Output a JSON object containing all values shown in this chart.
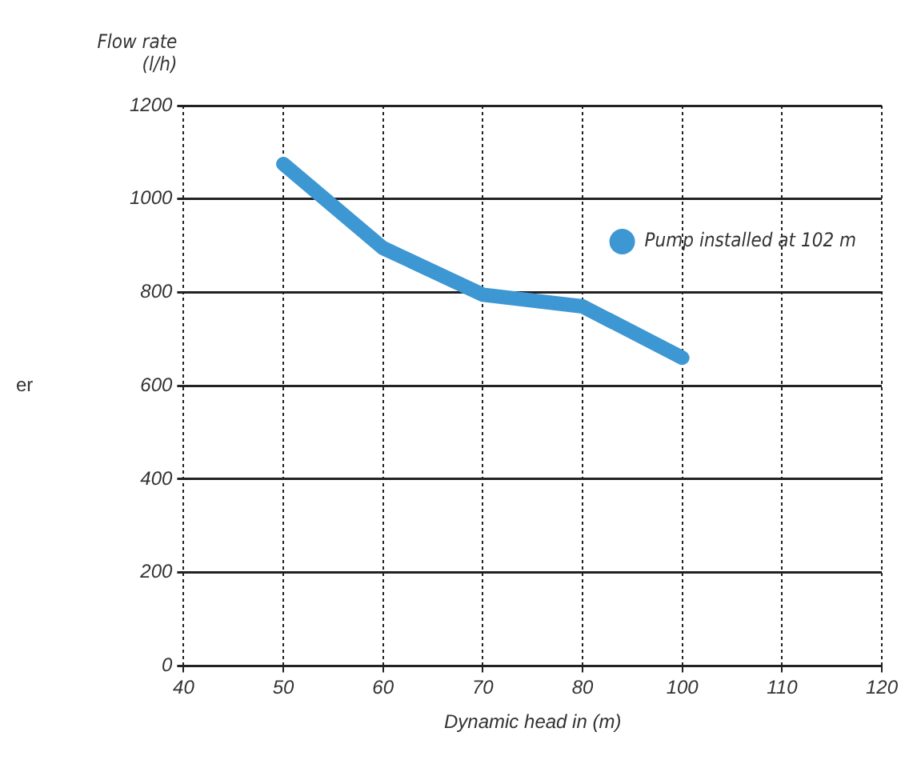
{
  "chart_data": {
    "type": "line",
    "ylabel": "Flow rate\n(l/h)",
    "xlabel": "Dynamic head in (m)",
    "annotations": [
      "er"
    ],
    "categories": [
      "40",
      "50",
      "60",
      "70",
      "80",
      "100",
      "110",
      "120"
    ],
    "series": [
      {
        "name": "Pump installed at 102 m",
        "color": "#3d97d3",
        "values": [
          null,
          1075,
          895,
          795,
          770,
          660,
          null,
          null
        ]
      }
    ],
    "ylim": [
      0,
      1200
    ],
    "yticks": [
      0,
      200,
      400,
      600,
      800,
      1000,
      1200
    ],
    "grid": true,
    "legend": "top right",
    "marker": "none",
    "line_style": "solid"
  }
}
